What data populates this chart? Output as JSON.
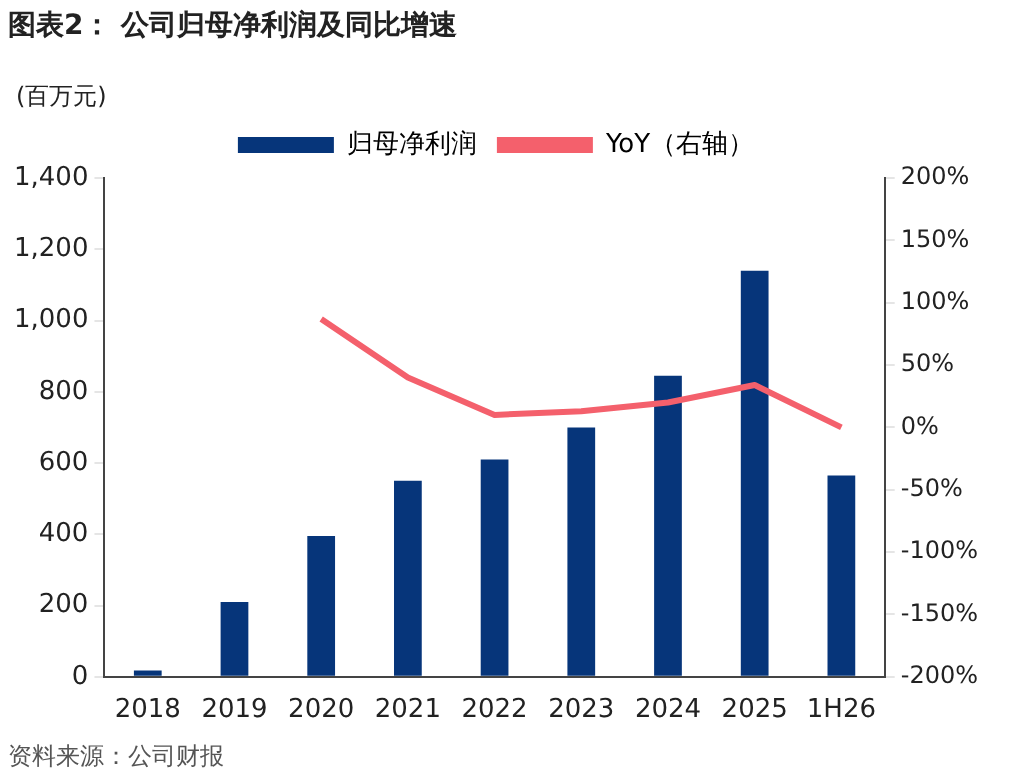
{
  "chart_data": {
    "type": "bar",
    "title": "图表2： 公司归母净利润及同比增速",
    "ylabel": "(百万元)",
    "annotations": [
      "资料来源：公司财报"
    ],
    "categories": [
      "2018",
      "2019",
      "2020",
      "2021",
      "2022",
      "2023",
      "2024",
      "2025",
      "1H26"
    ],
    "series": [
      {
        "name": "归母净利润",
        "color": "#06357a",
        "values": [
          18,
          210,
          395,
          550,
          610,
          700,
          845,
          1140,
          565
        ]
      },
      {
        "name": "YoY（右轴）",
        "type": "line",
        "axis": "y2",
        "color": "#f4606c",
        "values": [
          null,
          null,
          87,
          40,
          10,
          13,
          20,
          34,
          0
        ]
      }
    ],
    "ylim": [
      0,
      1400
    ],
    "yticks": [
      0,
      200,
      400,
      600,
      800,
      {
        "value": 1000,
        "label": "1,000"
      },
      {
        "value": 1200,
        "label": "1,200"
      },
      {
        "value": 1400,
        "label": "1,400"
      }
    ],
    "y2lim": [
      -200,
      200
    ],
    "y2ticks": [
      {
        "value": -200,
        "label": "-200%"
      },
      {
        "value": -150,
        "label": "-150%"
      },
      {
        "value": -100,
        "label": "-100%"
      },
      {
        "value": -50,
        "label": "-50%"
      },
      {
        "value": 0,
        "label": "0%"
      },
      {
        "value": 50,
        "label": "50%"
      },
      {
        "value": 100,
        "label": "100%"
      },
      {
        "value": 150,
        "label": "150%"
      },
      {
        "value": 200,
        "label": "200%"
      }
    ],
    "grid": false,
    "legend": "top",
    "marker": "none",
    "line_style": "solid"
  }
}
